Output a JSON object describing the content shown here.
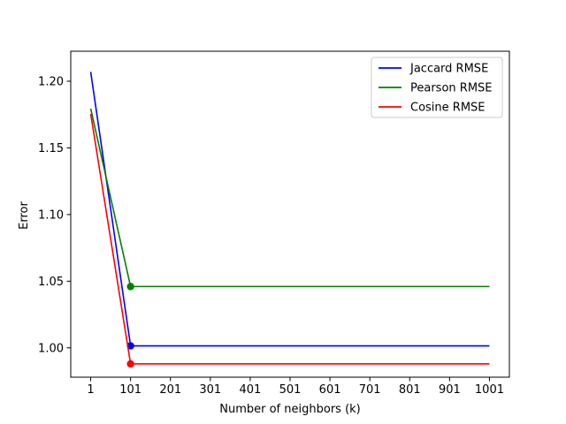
{
  "chart_data": {
    "type": "line",
    "title": "",
    "xlabel": "Number of neighbors (k)",
    "ylabel": "Error",
    "xlim": [
      -49,
      1051
    ],
    "ylim": [
      0.978,
      1.2225
    ],
    "xticks": [
      1,
      101,
      201,
      301,
      401,
      501,
      601,
      701,
      801,
      901,
      1001
    ],
    "xtick_labels": [
      "1",
      "101",
      "201",
      "301",
      "401",
      "501",
      "601",
      "701",
      "801",
      "901",
      "1001"
    ],
    "yticks": [
      1.0,
      1.05,
      1.1,
      1.15,
      1.2
    ],
    "ytick_labels": [
      "1.00",
      "1.05",
      "1.10",
      "1.15",
      "1.20"
    ],
    "grid": false,
    "legend_position": "top-right",
    "series": [
      {
        "name": "Jaccard RMSE",
        "color": "#0000ff",
        "x": [
          1,
          101,
          201,
          301,
          401,
          501,
          601,
          701,
          801,
          901,
          1001
        ],
        "y": [
          1.207,
          1.0015,
          1.0015,
          1.0015,
          1.0015,
          1.0015,
          1.0015,
          1.0015,
          1.0015,
          1.0015,
          1.0015
        ],
        "marker_index": 1
      },
      {
        "name": "Pearson RMSE",
        "color": "#008000",
        "x": [
          1,
          101,
          201,
          301,
          401,
          501,
          601,
          701,
          801,
          901,
          1001
        ],
        "y": [
          1.1795,
          1.046,
          1.046,
          1.046,
          1.046,
          1.046,
          1.046,
          1.046,
          1.046,
          1.046,
          1.046
        ],
        "marker_index": 1
      },
      {
        "name": "Cosine RMSE",
        "color": "#ff0000",
        "x": [
          1,
          101,
          201,
          301,
          401,
          501,
          601,
          701,
          801,
          901,
          1001
        ],
        "y": [
          1.1755,
          0.988,
          0.988,
          0.988,
          0.988,
          0.988,
          0.988,
          0.988,
          0.988,
          0.988,
          0.988
        ],
        "marker_index": 1
      }
    ]
  }
}
